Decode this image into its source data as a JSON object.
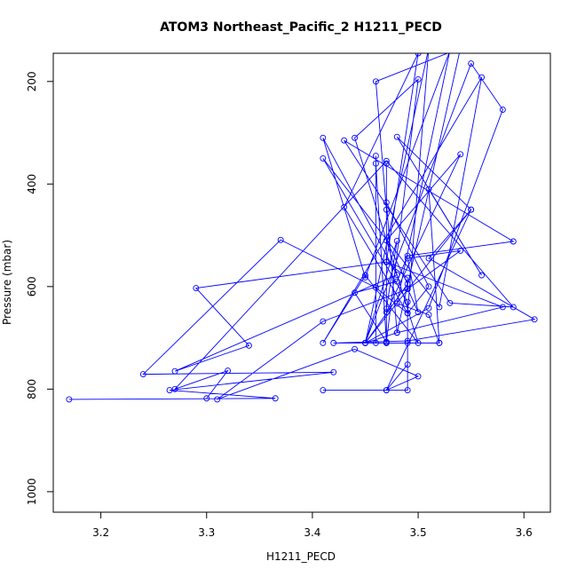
{
  "chart_data": {
    "type": "line",
    "title": "ATOM3 Northeast_Pacific_2 H1211_PECD",
    "xlabel": "H1211_PECD",
    "ylabel": "Pressure (mbar)",
    "xlim": [
      3.155,
      3.625
    ],
    "ylim": [
      1040,
      145
    ],
    "y_inverted": true,
    "x_ticks": [
      3.2,
      3.3,
      3.4,
      3.5,
      3.6
    ],
    "x_tick_labels": [
      "3.2",
      "3.3",
      "3.4",
      "3.5",
      "3.6"
    ],
    "y_ticks": [
      200,
      400,
      600,
      800,
      1000
    ],
    "y_tick_labels": [
      "200",
      "400",
      "600",
      "800",
      "1000"
    ],
    "grid": false,
    "legend": "none",
    "colors": {
      "series": "#0000ff",
      "axes": "#000000"
    },
    "series": [
      {
        "values": [
          [
            3.17,
            820
          ],
          [
            3.365,
            818
          ],
          [
            3.265,
            802
          ],
          [
            3.42,
            767
          ],
          [
            3.24,
            771
          ],
          [
            3.37,
            509
          ],
          [
            3.46,
            602
          ],
          [
            3.49,
            652
          ],
          [
            3.43,
            445
          ],
          [
            3.5,
            145
          ],
          [
            3.47,
            552
          ],
          [
            3.29,
            603
          ],
          [
            3.34,
            715
          ],
          [
            3.27,
            765
          ],
          [
            3.48,
            577
          ],
          [
            3.41,
            310
          ],
          [
            3.45,
            582
          ],
          [
            3.53,
            140
          ],
          [
            3.48,
            633
          ],
          [
            3.51,
            655
          ],
          [
            3.52,
            710
          ],
          [
            3.47,
            710
          ],
          [
            3.46,
            710
          ],
          [
            3.46,
            345
          ],
          [
            3.46,
            360
          ],
          [
            3.47,
            710
          ],
          [
            3.47,
            360
          ],
          [
            3.47,
            552
          ],
          [
            3.47,
            643
          ],
          [
            3.48,
            511
          ],
          [
            3.45,
            710
          ],
          [
            3.55,
            165
          ],
          [
            3.58,
            255
          ],
          [
            3.51,
            642
          ],
          [
            3.45,
            710
          ],
          [
            3.48,
            690
          ],
          [
            3.58,
            640
          ],
          [
            3.47,
            552
          ],
          [
            3.49,
            583
          ],
          [
            3.49,
            604
          ],
          [
            3.5,
            650
          ],
          [
            3.49,
            545
          ],
          [
            3.54,
            530
          ],
          [
            3.49,
            605
          ],
          [
            3.41,
            668
          ],
          [
            3.31,
            820
          ],
          [
            3.44,
            722
          ],
          [
            3.5,
            775
          ],
          [
            3.47,
            802
          ],
          [
            3.55,
            450
          ],
          [
            3.51,
            545
          ],
          [
            3.61,
            664
          ],
          [
            3.49,
            706
          ],
          [
            3.42,
            710
          ],
          [
            3.49,
            710
          ],
          [
            3.49,
            802
          ],
          [
            3.41,
            802
          ],
          [
            3.47,
            802
          ],
          [
            3.49,
            752
          ],
          [
            3.49,
            630
          ],
          [
            3.41,
            350
          ],
          [
            3.52,
            640
          ],
          [
            3.56,
            192
          ],
          [
            3.41,
            710
          ],
          [
            3.45,
            578
          ],
          [
            3.5,
            710
          ],
          [
            3.44,
            310
          ],
          [
            3.5,
            196
          ],
          [
            3.47,
            708
          ],
          [
            3.47,
            650
          ],
          [
            3.54,
            342
          ],
          [
            3.47,
            510
          ],
          [
            3.49,
            595
          ],
          [
            3.45,
            710
          ],
          [
            3.52,
            710
          ],
          [
            3.51,
            410
          ],
          [
            3.56,
            578
          ],
          [
            3.48,
            308
          ],
          [
            3.55,
            450
          ],
          [
            3.45,
            710
          ],
          [
            3.51,
            135
          ],
          [
            3.49,
            652
          ],
          [
            3.51,
            600
          ],
          [
            3.47,
            436
          ],
          [
            3.48,
            690
          ],
          [
            3.54,
            135
          ],
          [
            3.46,
            200
          ],
          [
            3.47,
            450
          ],
          [
            3.47,
            708
          ],
          [
            3.44,
            612
          ],
          [
            3.48,
            590
          ],
          [
            3.49,
            540
          ],
          [
            3.59,
            512
          ],
          [
            3.43,
            315
          ],
          [
            3.53,
            632
          ],
          [
            3.59,
            640
          ],
          [
            3.47,
            355
          ],
          [
            3.27,
            800
          ],
          [
            3.32,
            764
          ],
          [
            3.3,
            818
          ]
        ]
      }
    ]
  }
}
